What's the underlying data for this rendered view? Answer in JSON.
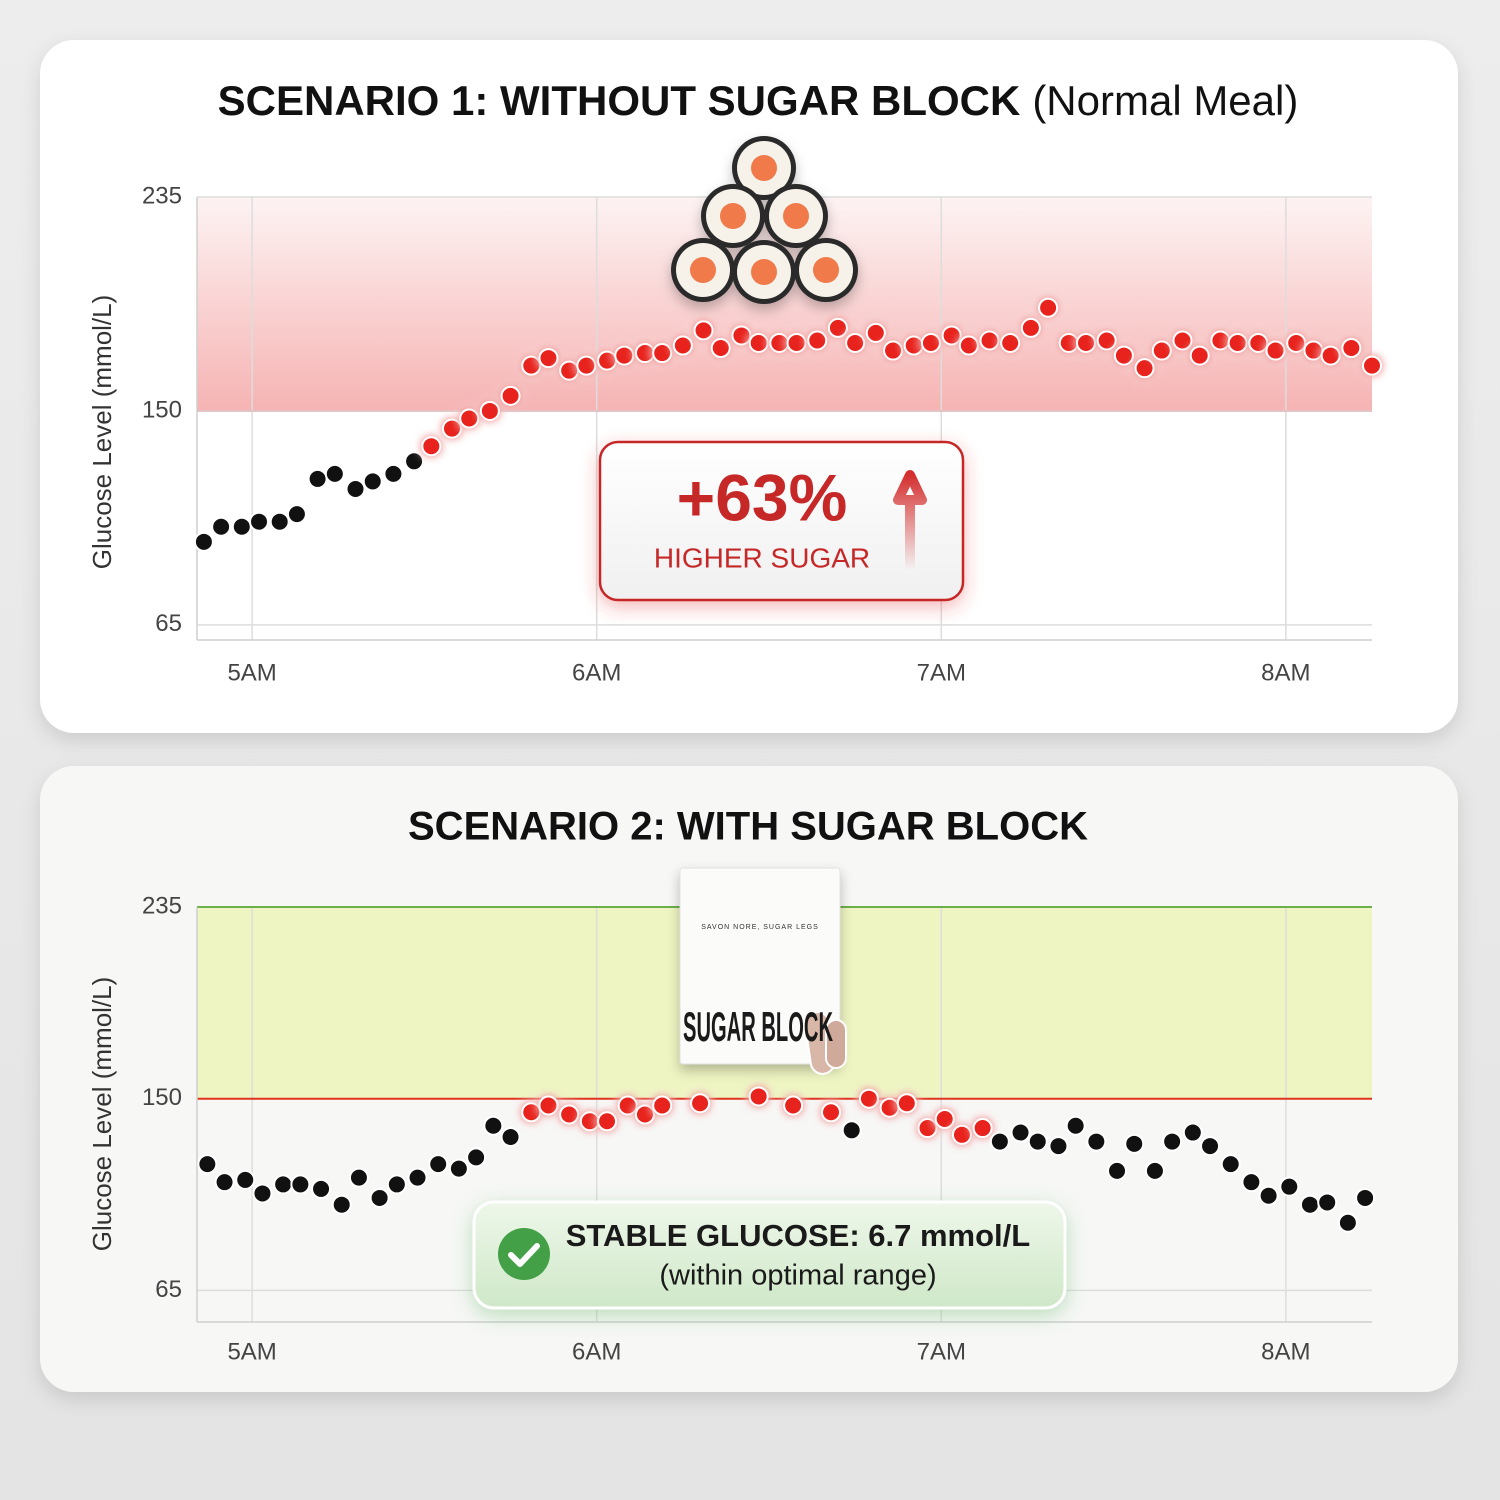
{
  "chart_data": [
    {
      "type": "line",
      "title": "SCENARIO 1: WITHOUT SUGAR BLOCK",
      "title_note": "(Normal Meal)",
      "y_label": "Glucose Level (mmol/L)",
      "x": [
        4.86,
        4.91,
        4.97,
        5.02,
        5.08,
        5.13,
        5.19,
        5.24,
        5.3,
        5.35,
        5.41,
        5.47,
        5.52,
        5.58,
        5.63,
        5.69,
        5.75,
        5.81,
        5.86,
        5.92,
        5.97,
        6.03,
        6.08,
        6.14,
        6.19,
        6.25,
        6.31,
        6.36,
        6.42,
        6.47,
        6.53,
        6.58,
        6.64,
        6.7,
        6.75,
        6.81,
        6.86,
        6.92,
        6.97,
        7.03,
        7.08,
        7.14,
        7.2,
        7.26,
        7.31,
        7.37,
        7.42,
        7.48,
        7.53,
        7.59,
        7.64,
        7.7,
        7.75,
        7.81,
        7.86,
        7.92,
        7.97,
        8.03,
        8.08,
        8.13,
        8.19,
        8.25
      ],
      "values": [
        98,
        104,
        104,
        106,
        106,
        109,
        123,
        125,
        119,
        122,
        125,
        130,
        136,
        143,
        147,
        150,
        156,
        168,
        171,
        166,
        168,
        170,
        172,
        173,
        173,
        176,
        182,
        175,
        180,
        177,
        177,
        177,
        178,
        183,
        177,
        181,
        174,
        176,
        177,
        180,
        176,
        178,
        177,
        183,
        191,
        177,
        177,
        178,
        172,
        167,
        174,
        178,
        172,
        178,
        177,
        177,
        174,
        177,
        174,
        172,
        175,
        168
      ],
      "xlim": [
        4.84,
        8.25
      ],
      "xticks": [
        {
          "value": 5,
          "label": "5AM"
        },
        {
          "value": 6,
          "label": "6AM"
        },
        {
          "value": 7,
          "label": "7AM"
        },
        {
          "value": 8,
          "label": "8AM"
        }
      ],
      "ylim": [
        59,
        235
      ],
      "yticks": [
        65,
        150,
        235
      ],
      "threshold": 150,
      "band_color": "#f6b3b3",
      "threshold_color": "#e2c4c4",
      "line_color": "#cf2b28",
      "marker_colors": [
        "#111111",
        "#111111",
        "#111111",
        "#111111",
        "#111111",
        "#111111",
        "#111111",
        "#111111",
        "#111111",
        "#111111",
        "#111111",
        "#111111",
        "#e8241f",
        "#e8241f",
        "#e8241f",
        "#e8241f",
        "#e8241f",
        "#e8241f",
        "#e8241f",
        "#e8241f",
        "#e8241f",
        "#e8241f",
        "#e8241f",
        "#e8241f",
        "#e8241f",
        "#e8241f",
        "#e8241f",
        "#e8241f",
        "#e8241f",
        "#e8241f",
        "#e8241f",
        "#e8241f",
        "#e8241f",
        "#e8241f",
        "#e8241f",
        "#e8241f",
        "#e8241f",
        "#e8241f",
        "#e8241f",
        "#e8241f",
        "#e8241f",
        "#e8241f",
        "#e8241f",
        "#e8241f",
        "#e8241f",
        "#e8241f",
        "#e8241f",
        "#e8241f",
        "#e8241f",
        "#e8241f",
        "#e8241f",
        "#e8241f",
        "#e8241f",
        "#e8241f",
        "#e8241f",
        "#e8241f",
        "#e8241f",
        "#e8241f",
        "#e8241f",
        "#e8241f",
        "#e8241f",
        "#e8241f"
      ],
      "annotation": "+63%",
      "annotation_sub": "HIGHER SUGAR"
    },
    {
      "type": "line",
      "title": "SCENARIO 2: WITH SUGAR BLOCK",
      "y_label": "Glucose Level (mmol/L)",
      "x": [
        4.87,
        4.92,
        4.98,
        5.03,
        5.09,
        5.14,
        5.2,
        5.26,
        5.31,
        5.37,
        5.42,
        5.48,
        5.54,
        5.6,
        5.65,
        5.7,
        5.75,
        5.81,
        5.86,
        5.92,
        5.98,
        6.03,
        6.09,
        6.14,
        6.19,
        6.3,
        6.47,
        6.57,
        6.68,
        6.74,
        6.79,
        6.85,
        6.9,
        6.96,
        7.01,
        7.06,
        7.12,
        7.17,
        7.23,
        7.28,
        7.34,
        7.39,
        7.45,
        7.51,
        7.56,
        7.62,
        7.67,
        7.73,
        7.78,
        7.84,
        7.9,
        7.95,
        8.01,
        8.07,
        8.12,
        8.18,
        8.23
      ],
      "values": [
        121,
        113,
        114,
        108,
        112,
        112,
        110,
        103,
        115,
        106,
        112,
        115,
        121,
        119,
        124,
        138,
        133,
        144,
        147,
        143,
        140,
        140,
        147,
        143,
        147,
        148,
        151,
        147,
        144,
        136,
        150,
        146,
        148,
        137,
        141,
        134,
        137,
        131,
        135,
        131,
        129,
        138,
        131,
        118,
        130,
        118,
        131,
        135,
        129,
        121,
        113,
        107,
        111,
        103,
        104,
        95,
        106
      ],
      "xlim": [
        4.84,
        8.25
      ],
      "xticks": [
        {
          "value": 5,
          "label": "5AM"
        },
        {
          "value": 6,
          "label": "6AM"
        },
        {
          "value": 7,
          "label": "7AM"
        },
        {
          "value": 8,
          "label": "8AM"
        }
      ],
      "ylim": [
        51,
        235
      ],
      "yticks": [
        65,
        150,
        235
      ],
      "threshold": 150,
      "band_color": "#eef5c2",
      "band_edge_color": "#6bb04a",
      "threshold_color": "#e0321f",
      "area_color": "#5fae54",
      "line_color": "#3d8f33",
      "marker_colors": [
        "#111111",
        "#111111",
        "#111111",
        "#111111",
        "#111111",
        "#111111",
        "#111111",
        "#111111",
        "#111111",
        "#111111",
        "#111111",
        "#111111",
        "#111111",
        "#111111",
        "#111111",
        "#111111",
        "#111111",
        "#e8241f",
        "#e8241f",
        "#e8241f",
        "#e8241f",
        "#e8241f",
        "#e8241f",
        "#e8241f",
        "#e8241f",
        "#e8241f",
        "#e8241f",
        "#e8241f",
        "#e8241f",
        "#111111",
        "#e8241f",
        "#e8241f",
        "#e8241f",
        "#e8241f",
        "#e8241f",
        "#e8241f",
        "#e8241f",
        "#111111",
        "#111111",
        "#111111",
        "#111111",
        "#111111",
        "#111111",
        "#111111",
        "#111111",
        "#111111",
        "#111111",
        "#111111",
        "#111111",
        "#111111",
        "#111111",
        "#111111",
        "#111111",
        "#111111",
        "#111111",
        "#111111",
        "#111111"
      ],
      "annotation": "STABLE GLUCOSE: 6.7 mmol/L",
      "annotation_sub": "(within optimal range)",
      "product_brand": "SAVON NORE, SUGAR LEGS",
      "product_name": "SUGAR BLOCK"
    }
  ]
}
